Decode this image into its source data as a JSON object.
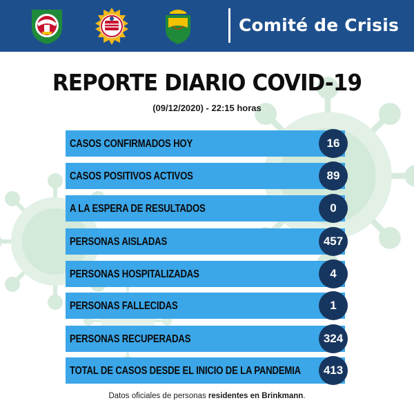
{
  "header": {
    "title": "Comité de Crisis",
    "logos": [
      "firefighters-emblem",
      "police-seal",
      "municipal-shield"
    ]
  },
  "report": {
    "title": "REPORTE DIARIO COVID-19",
    "date": "(09/12/2020) - 22:15 horas"
  },
  "stats": [
    {
      "label": "CASOS CONFIRMADOS HOY",
      "value": "16"
    },
    {
      "label": "CASOS POSITIVOS ACTIVOS",
      "value": "89"
    },
    {
      "label": "A LA ESPERA DE RESULTADOS",
      "value": "0"
    },
    {
      "label": "PERSONAS AISLADAS",
      "value": "457"
    },
    {
      "label": "PERSONAS HOSPITALIZADAS",
      "value": "4"
    },
    {
      "label": "PERSONAS FALLECIDAS",
      "value": "1"
    },
    {
      "label": "PERSONAS RECUPERADAS",
      "value": "324"
    },
    {
      "label": "TOTAL DE CASOS DESDE EL INICIO DE LA PANDEMIA",
      "value": "413"
    }
  ],
  "footer": {
    "prefix": "Datos oficiales de personas ",
    "bold": "residentes en Brinkmann",
    "suffix": "."
  },
  "colors": {
    "header_bg": "#1e4f8d",
    "bar": "#3ba6e8",
    "badge": "#17365f",
    "virus": "#cfe7d9"
  }
}
